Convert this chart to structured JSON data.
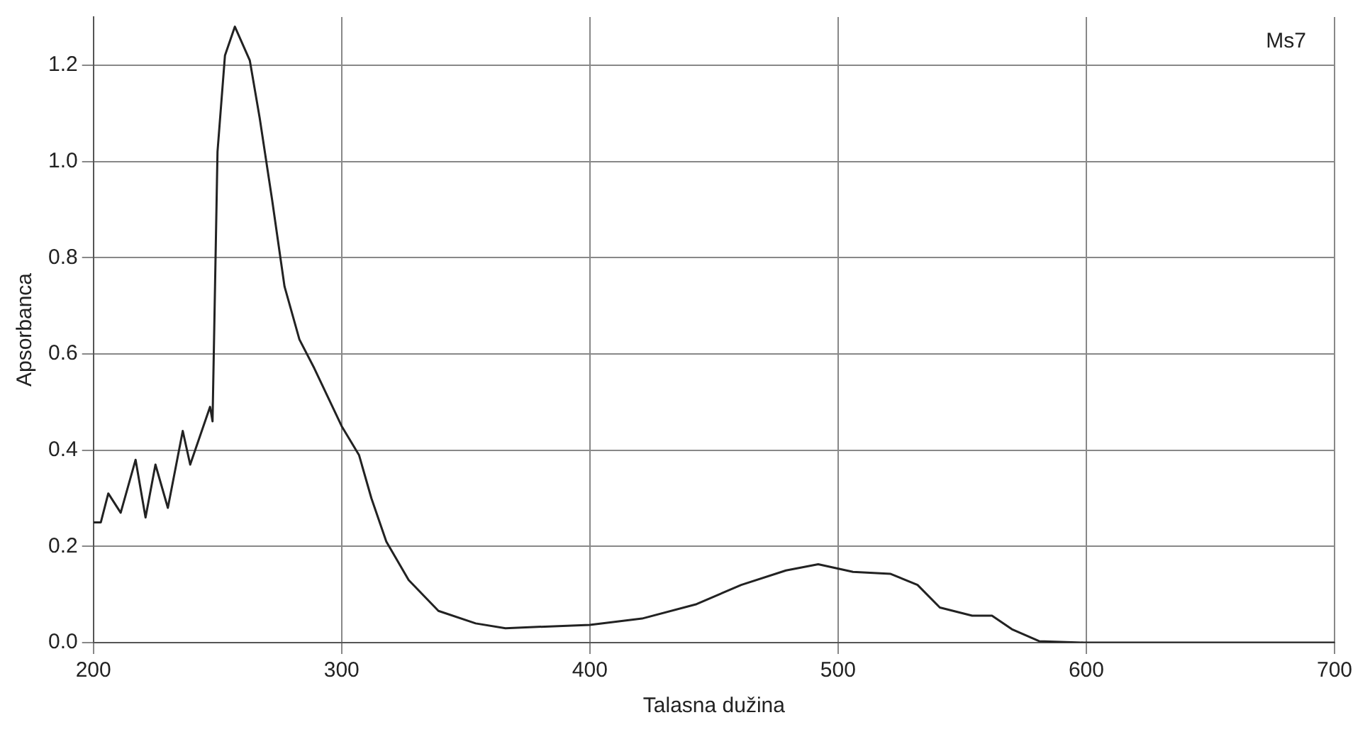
{
  "chart_data": {
    "type": "line",
    "xlabel": "Talasna dužina",
    "ylabel": "Apsorbanca",
    "annotations": [
      "Ms7"
    ],
    "xlim": [
      200,
      700
    ],
    "xticks": [
      200,
      300,
      400,
      500,
      600,
      700
    ],
    "ylim": [
      0,
      1.3
    ],
    "yticks": [
      {
        "value": 0,
        "label": "0.0"
      },
      0.2,
      0.4,
      0.6,
      0.8,
      {
        "value": 1,
        "label": "1.0"
      },
      1.2
    ],
    "grid": true,
    "legend": false,
    "marker": "none",
    "line_style": "solid",
    "series": [
      {
        "color": "#222222",
        "x": [
          200,
          203,
          206,
          211,
          217,
          221,
          225,
          230,
          236,
          239,
          247,
          248,
          250,
          253,
          257,
          263,
          267,
          272,
          277,
          283,
          289,
          300,
          307,
          312,
          318,
          327,
          339,
          354,
          366,
          400,
          421,
          443,
          461,
          479,
          492,
          506,
          521,
          532,
          541,
          554,
          562,
          570,
          581,
          599,
          650,
          700
        ],
        "values": [
          0.25,
          0.25,
          0.31,
          0.27,
          0.38,
          0.26,
          0.37,
          0.28,
          0.44,
          0.37,
          0.49,
          0.46,
          1.02,
          1.22,
          1.28,
          1.21,
          1.09,
          0.92,
          0.74,
          0.63,
          0.57,
          0.45,
          0.39,
          0.3,
          0.21,
          0.13,
          0.066,
          0.04,
          0.03,
          0.037,
          0.05,
          0.08,
          0.12,
          0.15,
          0.163,
          0.147,
          0.143,
          0.12,
          0.073,
          0.056,
          0.056,
          0.028,
          0.003,
          0,
          0,
          0
        ]
      }
    ]
  }
}
